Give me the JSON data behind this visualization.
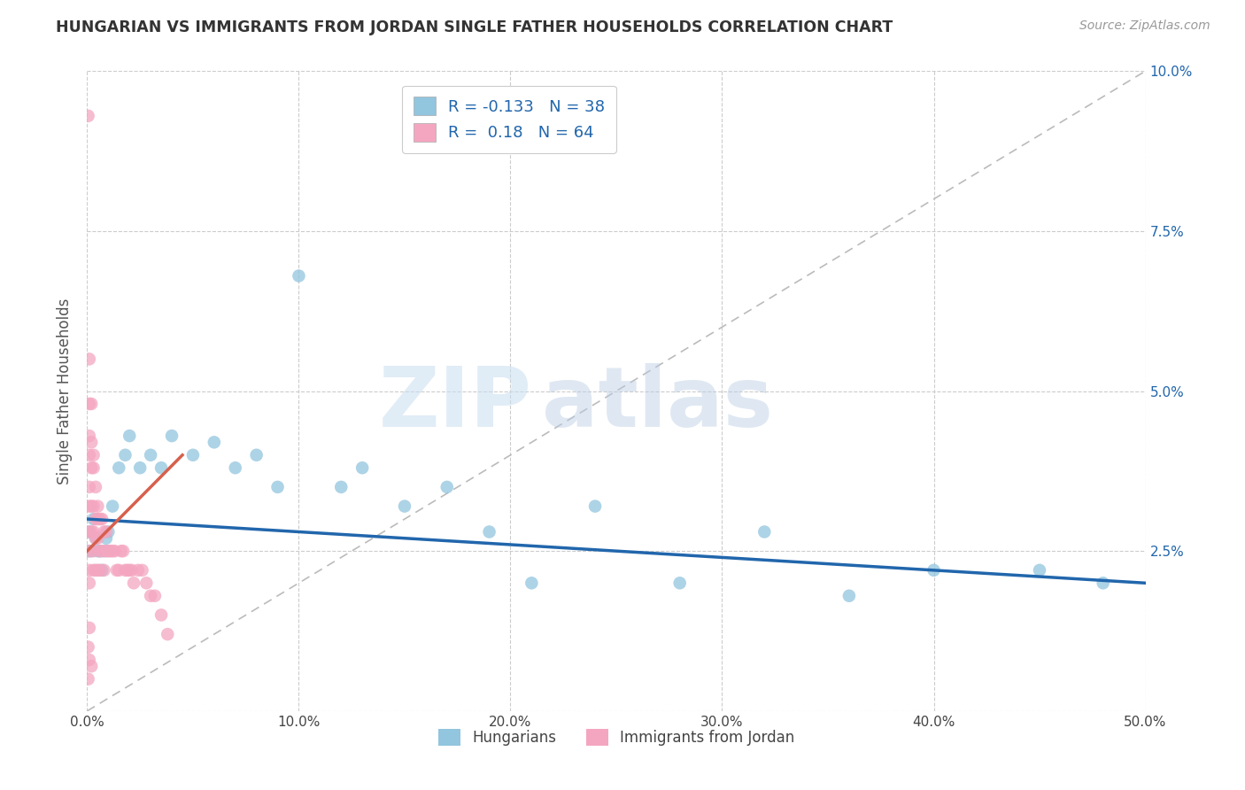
{
  "title": "HUNGARIAN VS IMMIGRANTS FROM JORDAN SINGLE FATHER HOUSEHOLDS CORRELATION CHART",
  "source": "Source: ZipAtlas.com",
  "xlabel_label": "Hungarians",
  "xlabel_label2": "Immigrants from Jordan",
  "ylabel": "Single Father Households",
  "xlim": [
    0,
    0.5
  ],
  "ylim": [
    0,
    0.1
  ],
  "xticks": [
    0.0,
    0.1,
    0.2,
    0.3,
    0.4,
    0.5
  ],
  "yticks": [
    0.0,
    0.025,
    0.05,
    0.075,
    0.1
  ],
  "xticklabels": [
    "0.0%",
    "10.0%",
    "20.0%",
    "30.0%",
    "40.0%",
    "50.0%"
  ],
  "yticklabels_right": [
    "",
    "2.5%",
    "5.0%",
    "7.5%",
    "10.0%"
  ],
  "blue_R": -0.133,
  "blue_N": 38,
  "pink_R": 0.18,
  "pink_N": 64,
  "blue_color": "#92c5de",
  "pink_color": "#f4a6c0",
  "blue_line_color": "#2166ac",
  "pink_line_color": "#d6604d",
  "watermark_zip": "ZIP",
  "watermark_atlas": "atlas",
  "blue_points_x": [
    0.001,
    0.001,
    0.002,
    0.003,
    0.004,
    0.005,
    0.006,
    0.007,
    0.008,
    0.009,
    0.01,
    0.012,
    0.015,
    0.018,
    0.02,
    0.025,
    0.03,
    0.035,
    0.04,
    0.05,
    0.06,
    0.07,
    0.08,
    0.09,
    0.1,
    0.12,
    0.13,
    0.15,
    0.17,
    0.19,
    0.21,
    0.24,
    0.28,
    0.32,
    0.36,
    0.4,
    0.45,
    0.48
  ],
  "blue_points_y": [
    0.025,
    0.028,
    0.025,
    0.03,
    0.027,
    0.025,
    0.025,
    0.022,
    0.025,
    0.027,
    0.028,
    0.032,
    0.038,
    0.04,
    0.043,
    0.038,
    0.04,
    0.038,
    0.043,
    0.04,
    0.042,
    0.038,
    0.04,
    0.035,
    0.068,
    0.035,
    0.038,
    0.032,
    0.035,
    0.028,
    0.02,
    0.032,
    0.02,
    0.028,
    0.018,
    0.022,
    0.022,
    0.02
  ],
  "pink_points_x": [
    0.0005,
    0.0005,
    0.001,
    0.001,
    0.001,
    0.001,
    0.001,
    0.001,
    0.001,
    0.001,
    0.001,
    0.001,
    0.002,
    0.002,
    0.002,
    0.002,
    0.002,
    0.003,
    0.003,
    0.003,
    0.003,
    0.003,
    0.003,
    0.004,
    0.004,
    0.004,
    0.004,
    0.005,
    0.005,
    0.005,
    0.005,
    0.006,
    0.006,
    0.006,
    0.007,
    0.007,
    0.008,
    0.008,
    0.009,
    0.009,
    0.01,
    0.011,
    0.012,
    0.013,
    0.014,
    0.015,
    0.016,
    0.017,
    0.018,
    0.019,
    0.02,
    0.021,
    0.022,
    0.024,
    0.026,
    0.028,
    0.03,
    0.032,
    0.035,
    0.038,
    0.0005,
    0.001,
    0.001,
    0.002
  ],
  "pink_points_y": [
    0.093,
    0.01,
    0.055,
    0.048,
    0.043,
    0.04,
    0.035,
    0.032,
    0.028,
    0.025,
    0.022,
    0.02,
    0.048,
    0.042,
    0.038,
    0.032,
    0.028,
    0.04,
    0.038,
    0.032,
    0.028,
    0.025,
    0.022,
    0.035,
    0.03,
    0.027,
    0.022,
    0.032,
    0.03,
    0.027,
    0.022,
    0.03,
    0.025,
    0.022,
    0.03,
    0.025,
    0.028,
    0.022,
    0.028,
    0.025,
    0.025,
    0.025,
    0.025,
    0.025,
    0.022,
    0.022,
    0.025,
    0.025,
    0.022,
    0.022,
    0.022,
    0.022,
    0.02,
    0.022,
    0.022,
    0.02,
    0.018,
    0.018,
    0.015,
    0.012,
    0.005,
    0.013,
    0.008,
    0.007
  ],
  "blue_line_x": [
    0.0,
    0.5
  ],
  "blue_line_y": [
    0.03,
    0.02
  ],
  "pink_line_x": [
    0.0,
    0.045
  ],
  "pink_line_y": [
    0.025,
    0.04
  ]
}
